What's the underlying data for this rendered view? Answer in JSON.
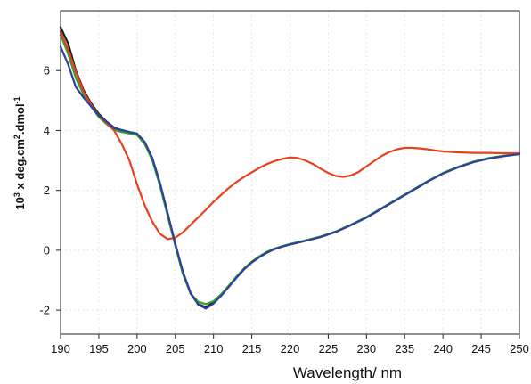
{
  "chart_data": {
    "type": "line",
    "title": "",
    "xlabel": "Wavelength/ nm",
    "ylabel_base": "10",
    "ylabel_sup1": "3",
    "ylabel_mid": " x deg.cm",
    "ylabel_sup2": "2",
    "ylabel_mid2": ".dmol",
    "ylabel_sup3": "-1",
    "xlim": [
      190,
      250
    ],
    "ylim": [
      -2.8,
      8.0
    ],
    "x_ticks": [
      190,
      195,
      200,
      205,
      210,
      215,
      220,
      225,
      230,
      235,
      240,
      245,
      250
    ],
    "y_ticks": [
      -2,
      0,
      2,
      4,
      6
    ],
    "grid": true,
    "legend": "none",
    "series": [
      {
        "color": "#1a1a1a",
        "points": [
          [
            190,
            7.45
          ],
          [
            191,
            6.9
          ],
          [
            192,
            6.0
          ],
          [
            193,
            5.35
          ],
          [
            194,
            4.9
          ],
          [
            195,
            4.55
          ],
          [
            196,
            4.3
          ],
          [
            197,
            4.1
          ],
          [
            198,
            4.0
          ],
          [
            199,
            3.93
          ],
          [
            200,
            3.88
          ],
          [
            201,
            3.6
          ],
          [
            202,
            3.05
          ],
          [
            203,
            2.2
          ],
          [
            204,
            1.2
          ],
          [
            205,
            0.2
          ],
          [
            206,
            -0.75
          ],
          [
            207,
            -1.45
          ],
          [
            208,
            -1.8
          ],
          [
            209,
            -1.9
          ],
          [
            210,
            -1.75
          ],
          [
            211,
            -1.5
          ],
          [
            212,
            -1.2
          ],
          [
            213,
            -0.9
          ],
          [
            214,
            -0.62
          ],
          [
            215,
            -0.4
          ],
          [
            216,
            -0.22
          ],
          [
            217,
            -0.07
          ],
          [
            218,
            0.05
          ],
          [
            219,
            0.13
          ],
          [
            220,
            0.2
          ],
          [
            222,
            0.32
          ],
          [
            224,
            0.45
          ],
          [
            226,
            0.62
          ],
          [
            228,
            0.85
          ],
          [
            230,
            1.1
          ],
          [
            232,
            1.4
          ],
          [
            234,
            1.7
          ],
          [
            236,
            2.0
          ],
          [
            238,
            2.3
          ],
          [
            240,
            2.57
          ],
          [
            242,
            2.78
          ],
          [
            244,
            2.95
          ],
          [
            246,
            3.07
          ],
          [
            248,
            3.15
          ],
          [
            250,
            3.22
          ]
        ]
      },
      {
        "color": "#2ea02e",
        "points": [
          [
            190,
            7.2
          ],
          [
            191,
            6.55
          ],
          [
            192,
            5.75
          ],
          [
            193,
            5.2
          ],
          [
            194,
            4.8
          ],
          [
            195,
            4.45
          ],
          [
            196,
            4.22
          ],
          [
            197,
            4.02
          ],
          [
            198,
            3.95
          ],
          [
            199,
            3.9
          ],
          [
            200,
            3.85
          ],
          [
            201,
            3.55
          ],
          [
            202,
            3.0
          ],
          [
            203,
            2.15
          ],
          [
            204,
            1.15
          ],
          [
            205,
            0.15
          ],
          [
            206,
            -0.8
          ],
          [
            207,
            -1.45
          ],
          [
            208,
            -1.72
          ],
          [
            209,
            -1.8
          ],
          [
            210,
            -1.7
          ],
          [
            211,
            -1.47
          ],
          [
            212,
            -1.18
          ],
          [
            213,
            -0.88
          ],
          [
            214,
            -0.6
          ],
          [
            215,
            -0.38
          ],
          [
            216,
            -0.2
          ],
          [
            217,
            -0.05
          ],
          [
            218,
            0.06
          ],
          [
            219,
            0.14
          ],
          [
            220,
            0.21
          ],
          [
            222,
            0.33
          ],
          [
            224,
            0.46
          ],
          [
            226,
            0.63
          ],
          [
            228,
            0.86
          ],
          [
            230,
            1.11
          ],
          [
            232,
            1.41
          ],
          [
            234,
            1.71
          ],
          [
            236,
            2.01
          ],
          [
            238,
            2.31
          ],
          [
            240,
            2.58
          ],
          [
            242,
            2.79
          ],
          [
            244,
            2.96
          ],
          [
            246,
            3.08
          ],
          [
            248,
            3.16
          ],
          [
            250,
            3.23
          ]
        ]
      },
      {
        "color": "#e8401f",
        "points": [
          [
            190,
            7.3
          ],
          [
            191,
            6.7
          ],
          [
            192,
            5.95
          ],
          [
            193,
            5.3
          ],
          [
            194,
            4.85
          ],
          [
            195,
            4.5
          ],
          [
            196,
            4.25
          ],
          [
            197,
            4.0
          ],
          [
            198,
            3.55
          ],
          [
            199,
            3.0
          ],
          [
            200,
            2.2
          ],
          [
            201,
            1.5
          ],
          [
            202,
            0.95
          ],
          [
            203,
            0.55
          ],
          [
            204,
            0.37
          ],
          [
            205,
            0.42
          ],
          [
            206,
            0.6
          ],
          [
            207,
            0.85
          ],
          [
            208,
            1.1
          ],
          [
            209,
            1.35
          ],
          [
            210,
            1.62
          ],
          [
            211,
            1.85
          ],
          [
            212,
            2.08
          ],
          [
            213,
            2.28
          ],
          [
            214,
            2.45
          ],
          [
            215,
            2.6
          ],
          [
            216,
            2.75
          ],
          [
            217,
            2.88
          ],
          [
            218,
            2.98
          ],
          [
            219,
            3.05
          ],
          [
            220,
            3.1
          ],
          [
            221,
            3.08
          ],
          [
            222,
            3.0
          ],
          [
            223,
            2.88
          ],
          [
            224,
            2.72
          ],
          [
            225,
            2.58
          ],
          [
            226,
            2.48
          ],
          [
            227,
            2.45
          ],
          [
            228,
            2.5
          ],
          [
            229,
            2.62
          ],
          [
            230,
            2.8
          ],
          [
            231,
            2.98
          ],
          [
            232,
            3.15
          ],
          [
            233,
            3.28
          ],
          [
            234,
            3.37
          ],
          [
            235,
            3.42
          ],
          [
            236,
            3.42
          ],
          [
            237,
            3.4
          ],
          [
            238,
            3.37
          ],
          [
            239,
            3.33
          ],
          [
            240,
            3.3
          ],
          [
            242,
            3.27
          ],
          [
            244,
            3.25
          ],
          [
            246,
            3.25
          ],
          [
            248,
            3.24
          ],
          [
            250,
            3.24
          ]
        ]
      },
      {
        "color": "#2e3f9e",
        "points": [
          [
            190,
            6.8
          ],
          [
            191,
            6.2
          ],
          [
            192,
            5.45
          ],
          [
            193,
            5.1
          ],
          [
            194,
            4.8
          ],
          [
            195,
            4.5
          ],
          [
            196,
            4.3
          ],
          [
            197,
            4.08
          ],
          [
            198,
            4.02
          ],
          [
            199,
            3.95
          ],
          [
            200,
            3.9
          ],
          [
            201,
            3.62
          ],
          [
            202,
            3.08
          ],
          [
            203,
            2.25
          ],
          [
            204,
            1.25
          ],
          [
            205,
            0.22
          ],
          [
            206,
            -0.72
          ],
          [
            207,
            -1.42
          ],
          [
            208,
            -1.82
          ],
          [
            209,
            -1.95
          ],
          [
            210,
            -1.78
          ],
          [
            211,
            -1.52
          ],
          [
            212,
            -1.22
          ],
          [
            213,
            -0.92
          ],
          [
            214,
            -0.64
          ],
          [
            215,
            -0.41
          ],
          [
            216,
            -0.23
          ],
          [
            217,
            -0.08
          ],
          [
            218,
            0.04
          ],
          [
            219,
            0.12
          ],
          [
            220,
            0.19
          ],
          [
            222,
            0.31
          ],
          [
            224,
            0.44
          ],
          [
            226,
            0.61
          ],
          [
            228,
            0.84
          ],
          [
            230,
            1.09
          ],
          [
            232,
            1.39
          ],
          [
            234,
            1.69
          ],
          [
            236,
            1.99
          ],
          [
            238,
            2.29
          ],
          [
            240,
            2.56
          ],
          [
            242,
            2.77
          ],
          [
            244,
            2.94
          ],
          [
            246,
            3.06
          ],
          [
            248,
            3.14
          ],
          [
            250,
            3.21
          ]
        ]
      }
    ]
  }
}
